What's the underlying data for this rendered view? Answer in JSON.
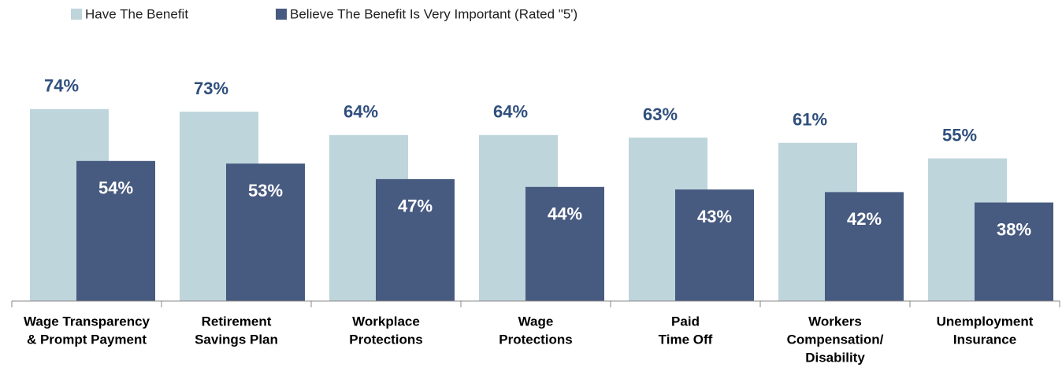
{
  "chart_data": {
    "type": "bar",
    "categories": [
      [
        "Wage Transparency",
        "& Prompt Payment"
      ],
      [
        "Retirement",
        "Savings Plan"
      ],
      [
        "Workplace",
        "Protections"
      ],
      [
        "Wage",
        "Protections"
      ],
      [
        "Paid",
        "Time Off"
      ],
      [
        "Workers",
        "Compensation/",
        "Disability"
      ],
      [
        "Unemployment",
        "Insurance"
      ]
    ],
    "series": [
      {
        "name": "Have The Benefit",
        "color": "#bed5dc",
        "values": [
          74,
          73,
          64,
          64,
          63,
          61,
          55
        ],
        "value_labels": [
          "74%",
          "73%",
          "64%",
          "64%",
          "63%",
          "61%",
          "55%"
        ]
      },
      {
        "name": "Believe The Benefit Is Very Important (Rated \"5')",
        "color": "#475a80",
        "values": [
          54,
          53,
          47,
          44,
          43,
          42,
          38
        ],
        "value_labels": [
          "54%",
          "53%",
          "47%",
          "44%",
          "43%",
          "42%",
          "38%"
        ]
      }
    ],
    "ylim": [
      0,
      100
    ]
  }
}
